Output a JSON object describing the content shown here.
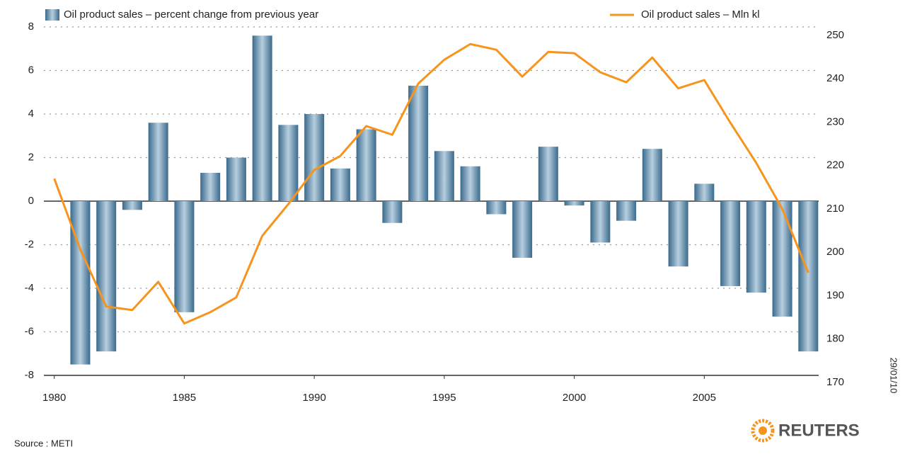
{
  "chart_data": {
    "type": "bar",
    "series": [
      {
        "name": "Oil product sales – percent change from previous year",
        "color": "#3b6a8c",
        "type": "bar",
        "x": [
          1981,
          1982,
          1983,
          1984,
          1985,
          1986,
          1987,
          1988,
          1989,
          1990,
          1991,
          1992,
          1993,
          1994,
          1995,
          1996,
          1997,
          1998,
          1999,
          2000,
          2001,
          2002,
          2003,
          2004,
          2005,
          2006,
          2007,
          2008,
          2009
        ],
        "values": [
          -7.5,
          -6.9,
          -0.4,
          3.6,
          -5.1,
          1.3,
          2.0,
          7.6,
          3.5,
          4.0,
          1.5,
          3.3,
          -1.0,
          5.3,
          2.3,
          1.6,
          -0.6,
          -2.6,
          2.5,
          -0.2,
          -1.9,
          -0.9,
          2.4,
          -3.0,
          0.8,
          -3.9,
          -4.2,
          -5.3,
          -6.9
        ]
      },
      {
        "name": "Oil product sales – Mln kl",
        "color": "#f7941d",
        "type": "line",
        "axis": "y2",
        "x": [
          1980,
          1981,
          1982,
          1983,
          1984,
          1985,
          1986,
          1987,
          1988,
          1989,
          1990,
          1991,
          1992,
          1993,
          1994,
          1995,
          1996,
          1997,
          1998,
          1999,
          2000,
          2001,
          2002,
          2003,
          2004,
          2005,
          2006,
          2007,
          2008,
          2009
        ],
        "values": [
          217.0,
          200.7,
          187.5,
          186.7,
          193.2,
          183.6,
          186.2,
          189.6,
          203.8,
          211.1,
          219.0,
          222.2,
          229.1,
          227.1,
          238.9,
          244.4,
          248.0,
          246.7,
          240.5,
          246.2,
          245.9,
          241.5,
          239.2,
          244.9,
          237.8,
          239.7,
          229.9,
          220.6,
          210.0,
          195.3
        ]
      }
    ],
    "xlim": [
      1979.6,
      2009.4
    ],
    "xticks": [
      1980,
      1985,
      1990,
      1995,
      2000,
      2005
    ],
    "ylim": [
      -8,
      8
    ],
    "yticks": [
      -8,
      -6,
      -4,
      -2,
      0,
      2,
      4,
      6,
      8
    ],
    "y2lim": [
      170,
      250
    ],
    "y2ticks": [
      170,
      180,
      190,
      200,
      210,
      220,
      230,
      240,
      250
    ],
    "grid": true,
    "source": "Source : METI",
    "date": "29/01/10",
    "logo": "REUTERS"
  }
}
